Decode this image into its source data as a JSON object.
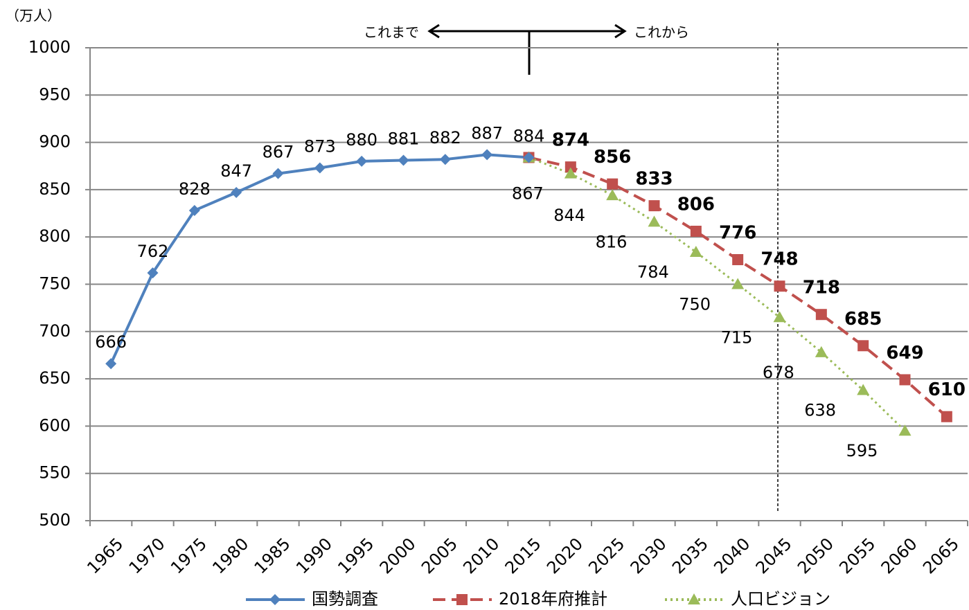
{
  "chart_data": {
    "type": "line",
    "unit_label": "（万人）",
    "annotations": {
      "past": "これまで",
      "future": "これから"
    },
    "categories": [
      "1965",
      "1970",
      "1975",
      "1980",
      "1985",
      "1990",
      "1995",
      "2000",
      "2005",
      "2010",
      "2015",
      "2020",
      "2025",
      "2030",
      "2035",
      "2040",
      "2045",
      "2050",
      "2055",
      "2060",
      "2065"
    ],
    "ylim": [
      500,
      1000
    ],
    "yticks": [
      500,
      550,
      600,
      650,
      700,
      750,
      800,
      850,
      900,
      950,
      1000
    ],
    "grid": true,
    "legend": "bottom",
    "series": [
      {
        "name": "国勢調査",
        "color": "#4f81bd",
        "marker": "diamond",
        "dash": "solid",
        "values": [
          666,
          762,
          828,
          847,
          867,
          873,
          880,
          881,
          882,
          887,
          884,
          null,
          null,
          null,
          null,
          null,
          null,
          null,
          null,
          null,
          null
        ]
      },
      {
        "name": "2018年府推計",
        "color": "#c0504d",
        "marker": "square",
        "dash": "dashed",
        "values": [
          null,
          null,
          null,
          null,
          null,
          null,
          null,
          null,
          null,
          null,
          884,
          874,
          856,
          833,
          806,
          776,
          748,
          718,
          685,
          649,
          610
        ]
      },
      {
        "name": "人口ビジョン",
        "color": "#9bbb59",
        "marker": "triangle",
        "dash": "dotted",
        "values": [
          null,
          null,
          null,
          null,
          null,
          null,
          null,
          null,
          null,
          null,
          884,
          867,
          844,
          816,
          784,
          750,
          715,
          678,
          638,
          595,
          null
        ]
      }
    ]
  }
}
